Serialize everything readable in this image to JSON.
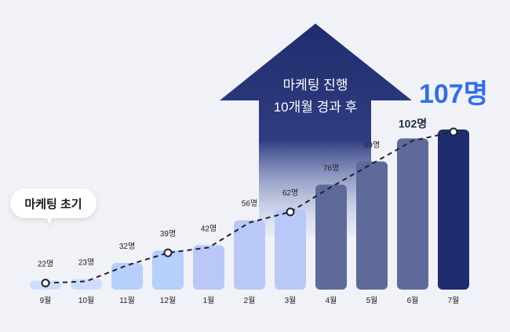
{
  "chart_data": {
    "type": "bar",
    "categories": [
      "9월",
      "10월",
      "11월",
      "12월",
      "1월",
      "2월",
      "3월",
      "4월",
      "5월",
      "6월",
      "7월"
    ],
    "values": [
      22,
      23,
      32,
      39,
      42,
      56,
      62,
      76,
      89,
      102,
      107
    ],
    "value_labels": [
      "22명",
      "23명",
      "32명",
      "39명",
      "42명",
      "56명",
      "62명",
      "76명",
      "89명",
      "102명",
      "107명"
    ],
    "trend_line": "dashed",
    "highlighted_points": [
      "9월",
      "12월",
      "3월",
      "7월"
    ],
    "colors": {
      "bars": [
        "#cdddfb",
        "#cdddfb",
        "#b6cffb",
        "#b6cffb",
        "#b9c8f6",
        "#b9c8f6",
        "#b9c8f6",
        "#5d6a9a",
        "#5d6a9a",
        "#5d6a9a",
        "#1f2d6e"
      ],
      "arrow": "#1f2d6e",
      "final_label": "#2f6fe8"
    }
  },
  "annotations": {
    "start_callout": "마케팅 초기",
    "arrow_line1": "마케팅 진행",
    "arrow_line2": "10개월 경과 후"
  }
}
